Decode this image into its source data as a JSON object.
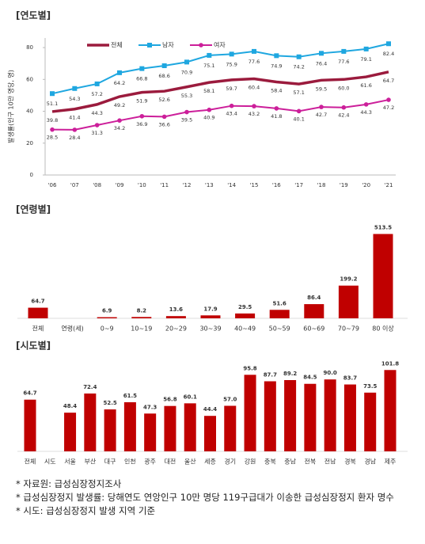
{
  "chart_data": [
    {
      "type": "line",
      "title": "[연도별]",
      "y_label": "발생률(인구 10만 명당, 명)",
      "categories": [
        "'06",
        "'07",
        "'08",
        "'09",
        "'10",
        "'11",
        "'12",
        "'13",
        "'14",
        "'15",
        "'16",
        "'17",
        "'18",
        "'19",
        "'20",
        "'21"
      ],
      "series": [
        {
          "name": "전체",
          "color": "#9b1b3d",
          "marker": "none",
          "values": [
            39.8,
            41.4,
            44.3,
            49.2,
            51.9,
            52.6,
            55.3,
            58.1,
            59.7,
            60.4,
            58.4,
            57.1,
            59.5,
            60.0,
            61.6,
            64.7
          ],
          "value_labels": [
            "39.8",
            "41.4",
            "44.3",
            "49.2",
            "51.9",
            "52.6",
            "55.3",
            "58.1",
            "59.7",
            "60.4",
            "58.4",
            "57.1",
            "59.5",
            "60.0",
            "61.6",
            "64.7"
          ]
        },
        {
          "name": "남자",
          "color": "#1fa7e0",
          "marker": "square",
          "values": [
            51.1,
            54.3,
            57.2,
            64.2,
            66.8,
            68.6,
            70.9,
            75.1,
            75.9,
            77.6,
            74.9,
            74.2,
            76.4,
            77.6,
            79.1,
            82.4
          ]
        },
        {
          "name": "여자",
          "color": "#cc1f9a",
          "marker": "circle",
          "values": [
            28.5,
            28.4,
            31.3,
            34.2,
            36.9,
            36.6,
            39.5,
            40.9,
            43.4,
            43.2,
            41.8,
            40.1,
            42.7,
            42.4,
            44.3,
            47.2
          ]
        }
      ],
      "ylim": [
        0,
        86
      ],
      "yticks": [
        0,
        20,
        40,
        60,
        80
      ]
    },
    {
      "type": "bar",
      "title": "[연령별]",
      "color": "#c00000",
      "categories": [
        "전체",
        "연령(세)",
        "0~9",
        "10~19",
        "20~29",
        "30~39",
        "40~49",
        "50~59",
        "60~69",
        "70~79",
        "80 이상"
      ],
      "values": [
        64.7,
        null,
        6.9,
        8.2,
        13.6,
        17.9,
        29.5,
        51.6,
        86.4,
        199.2,
        513.5
      ],
      "ylim": [
        0,
        540
      ]
    },
    {
      "type": "bar",
      "title": "[시도별]",
      "color": "#c00000",
      "categories": [
        "전체",
        "시도",
        "서울",
        "부산",
        "대구",
        "인천",
        "광주",
        "대전",
        "울산",
        "세종",
        "경기",
        "강원",
        "충북",
        "충남",
        "전북",
        "전남",
        "경북",
        "경남",
        "제주"
      ],
      "values": [
        64.7,
        null,
        48.4,
        72.4,
        52.5,
        61.5,
        47.3,
        56.8,
        60.1,
        44.4,
        57.0,
        95.8,
        87.7,
        89.2,
        84.5,
        90.0,
        83.7,
        73.5,
        101.8
      ],
      "value_labels": [
        "64.7",
        null,
        "48.4",
        "72.4",
        "52.5",
        "61.5",
        "47.3",
        "56.8",
        "60.1",
        "44.4",
        "57.0",
        "95.8",
        "87.7",
        "89.2",
        "84.5",
        "90.0",
        "83.7",
        "73.5",
        "101.8"
      ],
      "ylim": [
        0,
        110
      ]
    }
  ],
  "notes": [
    "* 자료원: 급성심장정지조사",
    "* 급성심장정지 발생률: 당해연도 연앙인구 10만 명당 119구급대가 이송한 급성심장정지 환자 명수",
    "* 시도: 급성심장정지 발생 지역 기준"
  ]
}
